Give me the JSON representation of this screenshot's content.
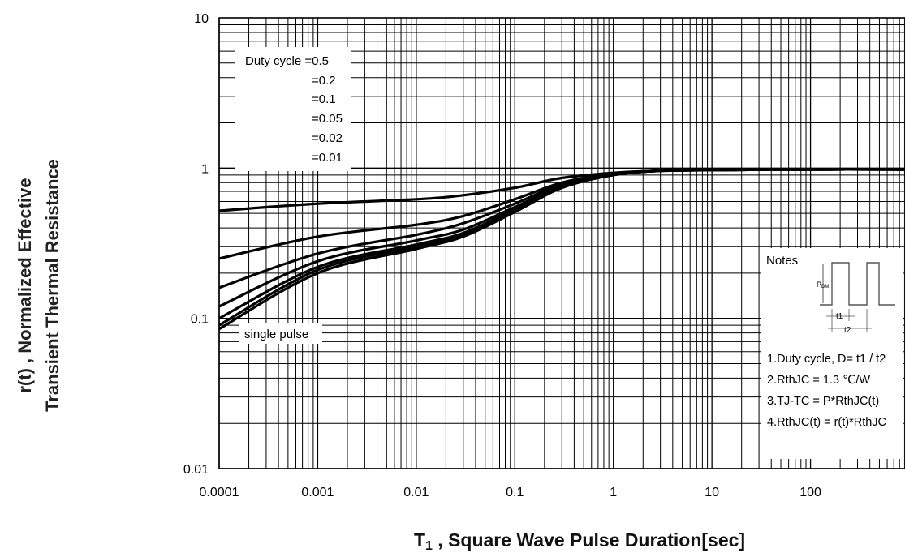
{
  "chart_data": {
    "type": "line",
    "title": "",
    "ylabel_line1": "r(t) , Normalized Effective",
    "ylabel_line2": "Transient Thermal Resistance",
    "xlabel_main": "T",
    "xlabel_sub": "1",
    "xlabel_rest": " , Square Wave Pulse Duration[sec]",
    "xscale": "log",
    "yscale": "log",
    "xlim": [
      0.0001,
      1000
    ],
    "ylim": [
      0.01,
      10
    ],
    "grid": true,
    "x_tick_labels": [
      "0.0001",
      "0.001",
      "0.01",
      "0.1",
      "1",
      "10",
      "100"
    ],
    "y_tick_labels": [
      "0.01",
      "0.1",
      "1",
      "10"
    ],
    "legend": {
      "placement": "top-left",
      "header": "Duty cycle =0.5",
      "entries": [
        "=0.2",
        "=0.1",
        "=0.05",
        "=0.02",
        "=0.01"
      ]
    },
    "single_pulse_label": "single pulse",
    "notes": {
      "title": "Notes",
      "pdm_label": "P",
      "pdm_sub": "DM",
      "t1_label": "t1",
      "t2_label": "t2",
      "lines": [
        "1.Duty cycle, D= t1 / t2",
        "2.RthJC =  1.3 ℃/W",
        "3.TJ-TC = P*RthJC(t)",
        "4.RthJC(t) = r(t)*RthJC"
      ]
    },
    "series": [
      {
        "x": [
          0.0001,
          0.001,
          0.01,
          0.03,
          0.1,
          0.3,
          1,
          3,
          10,
          100,
          1000
        ],
        "y": [
          0.52,
          0.58,
          0.62,
          0.66,
          0.74,
          0.86,
          0.93,
          0.96,
          0.97,
          0.98,
          0.98
        ]
      },
      {
        "x": [
          0.0001,
          0.001,
          0.01,
          0.03,
          0.1,
          0.3,
          1,
          3,
          10,
          100,
          1000
        ],
        "y": [
          0.25,
          0.35,
          0.42,
          0.48,
          0.62,
          0.8,
          0.92,
          0.96,
          0.97,
          0.98,
          0.98
        ]
      },
      {
        "x": [
          0.0001,
          0.001,
          0.01,
          0.03,
          0.1,
          0.3,
          1,
          3,
          10,
          100,
          1000
        ],
        "y": [
          0.16,
          0.27,
          0.36,
          0.43,
          0.58,
          0.78,
          0.91,
          0.96,
          0.97,
          0.98,
          0.98
        ]
      },
      {
        "x": [
          0.0001,
          0.001,
          0.01,
          0.03,
          0.1,
          0.3,
          1,
          3,
          10,
          100,
          1000
        ],
        "y": [
          0.12,
          0.24,
          0.33,
          0.39,
          0.55,
          0.76,
          0.91,
          0.96,
          0.97,
          0.98,
          0.98
        ]
      },
      {
        "x": [
          0.0001,
          0.001,
          0.01,
          0.03,
          0.1,
          0.3,
          1,
          3,
          10,
          100,
          1000
        ],
        "y": [
          0.1,
          0.22,
          0.31,
          0.37,
          0.53,
          0.75,
          0.9,
          0.96,
          0.97,
          0.98,
          0.98
        ]
      },
      {
        "x": [
          0.0001,
          0.001,
          0.01,
          0.03,
          0.1,
          0.3,
          1,
          3,
          10,
          100,
          1000
        ],
        "y": [
          0.09,
          0.21,
          0.3,
          0.36,
          0.52,
          0.74,
          0.9,
          0.96,
          0.97,
          0.98,
          0.98
        ]
      },
      {
        "x": [
          0.0001,
          0.001,
          0.01,
          0.03,
          0.1,
          0.3,
          1,
          3,
          10,
          100,
          1000
        ],
        "y": [
          0.085,
          0.2,
          0.29,
          0.35,
          0.51,
          0.74,
          0.9,
          0.96,
          0.97,
          0.98,
          0.98
        ]
      }
    ]
  }
}
